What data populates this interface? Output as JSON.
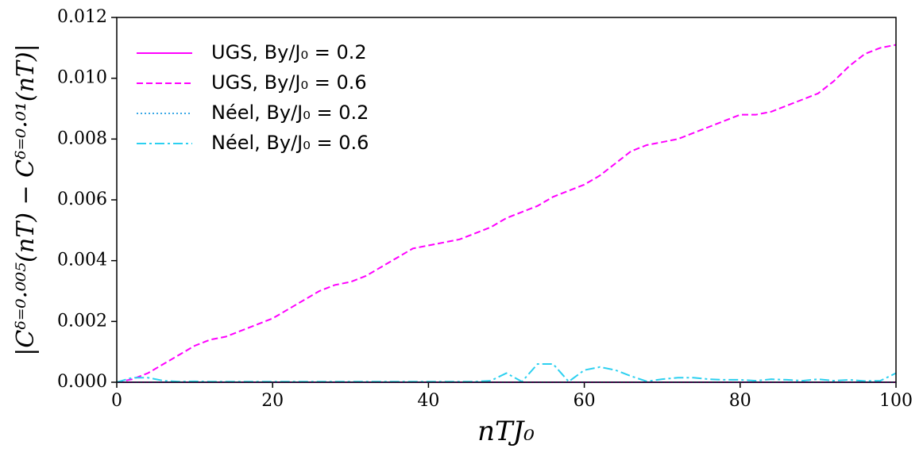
{
  "chart_data": {
    "type": "line",
    "xlabel": "nTJ₀",
    "ylabel": "|Cᵟ⁼⁰·⁰⁰⁵(nT) − Cᵟ⁼⁰·⁰¹(nT)|",
    "x": [
      0,
      2,
      4,
      6,
      8,
      10,
      12,
      14,
      16,
      18,
      20,
      22,
      24,
      26,
      28,
      30,
      32,
      34,
      36,
      38,
      40,
      42,
      44,
      46,
      48,
      50,
      52,
      54,
      56,
      58,
      60,
      62,
      64,
      66,
      68,
      70,
      72,
      74,
      76,
      78,
      80,
      82,
      84,
      86,
      88,
      90,
      92,
      94,
      96,
      98,
      100
    ],
    "series": [
      {
        "name": "UGS, By/J₀ = 0.2",
        "color": "#ff00ff",
        "style": "solid",
        "values": [
          0,
          0,
          0,
          0,
          0,
          0,
          0,
          0,
          0,
          0,
          0,
          0,
          0,
          0,
          0,
          0,
          0,
          0,
          0,
          0,
          0,
          0,
          0,
          0,
          0,
          0,
          0,
          0,
          0,
          0,
          0,
          0,
          0,
          0,
          0,
          0,
          0,
          0,
          0,
          0,
          0,
          0,
          0,
          0,
          0,
          0,
          0,
          0,
          0,
          0,
          0
        ]
      },
      {
        "name": "UGS, By/J₀ = 0.6",
        "color": "#ff00ff",
        "style": "dashed",
        "values": [
          0,
          0.0001,
          0.0003,
          0.0006,
          0.0009,
          0.0012,
          0.0014,
          0.0015,
          0.0017,
          0.0019,
          0.0021,
          0.0024,
          0.0027,
          0.003,
          0.0032,
          0.0033,
          0.0035,
          0.0038,
          0.0041,
          0.0044,
          0.0045,
          0.0046,
          0.0047,
          0.0049,
          0.0051,
          0.0054,
          0.0056,
          0.0058,
          0.0061,
          0.0063,
          0.0065,
          0.0068,
          0.0072,
          0.0076,
          0.0078,
          0.0079,
          0.008,
          0.0082,
          0.0084,
          0.0086,
          0.0088,
          0.0088,
          0.0089,
          0.0091,
          0.0093,
          0.0095,
          0.0099,
          0.0104,
          0.0108,
          0.011,
          0.0111
        ]
      },
      {
        "name": "Néel, By/J₀ = 0.2",
        "color": "#3aa8e6",
        "style": "dotted",
        "values": [
          0,
          0,
          0,
          0,
          0,
          0,
          0,
          0,
          0,
          0,
          0,
          0,
          0,
          0,
          0,
          0,
          0,
          0,
          0,
          0,
          0,
          0,
          0,
          0,
          0,
          0,
          0,
          0,
          0,
          0,
          0,
          0,
          0,
          0,
          0,
          0,
          0,
          0,
          0,
          0,
          0,
          0,
          0,
          0,
          0,
          0,
          0,
          0,
          0,
          0,
          0
        ]
      },
      {
        "name": "Néel, By/J₀ = 0.6",
        "color": "#2cd0f0",
        "style": "dashdot",
        "values": [
          0,
          0.00015,
          0.00015,
          5e-05,
          2e-05,
          3e-05,
          2e-05,
          2e-05,
          2e-05,
          2e-05,
          2e-05,
          2e-05,
          2e-05,
          2e-05,
          2e-05,
          2e-05,
          2e-05,
          2e-05,
          2e-05,
          2e-05,
          2e-05,
          2e-05,
          2e-05,
          2e-05,
          5e-05,
          0.0003,
          2e-05,
          0.0006,
          0.0006,
          2e-05,
          0.0004,
          0.0005,
          0.0004,
          0.0002,
          3e-05,
          0.0001,
          0.00015,
          0.00015,
          0.0001,
          8e-05,
          8e-05,
          5e-05,
          0.0001,
          8e-05,
          5e-05,
          0.0001,
          5e-05,
          8e-05,
          4e-05,
          5e-05,
          0.0003
        ]
      }
    ],
    "xlim": [
      0,
      100
    ],
    "xticks": [
      0,
      20,
      40,
      60,
      80,
      100
    ],
    "ylim": [
      0,
      0.012
    ],
    "yticks": [
      {
        "value": 0,
        "label": "0.000"
      },
      {
        "value": 0.002,
        "label": "0.002"
      },
      {
        "value": 0.004,
        "label": "0.004"
      },
      {
        "value": 0.006,
        "label": "0.006"
      },
      {
        "value": 0.008,
        "label": "0.008"
      },
      {
        "value": 0.01,
        "label": "0.010"
      },
      {
        "value": 0.012,
        "label": "0.012"
      }
    ],
    "legend": "upper left"
  }
}
